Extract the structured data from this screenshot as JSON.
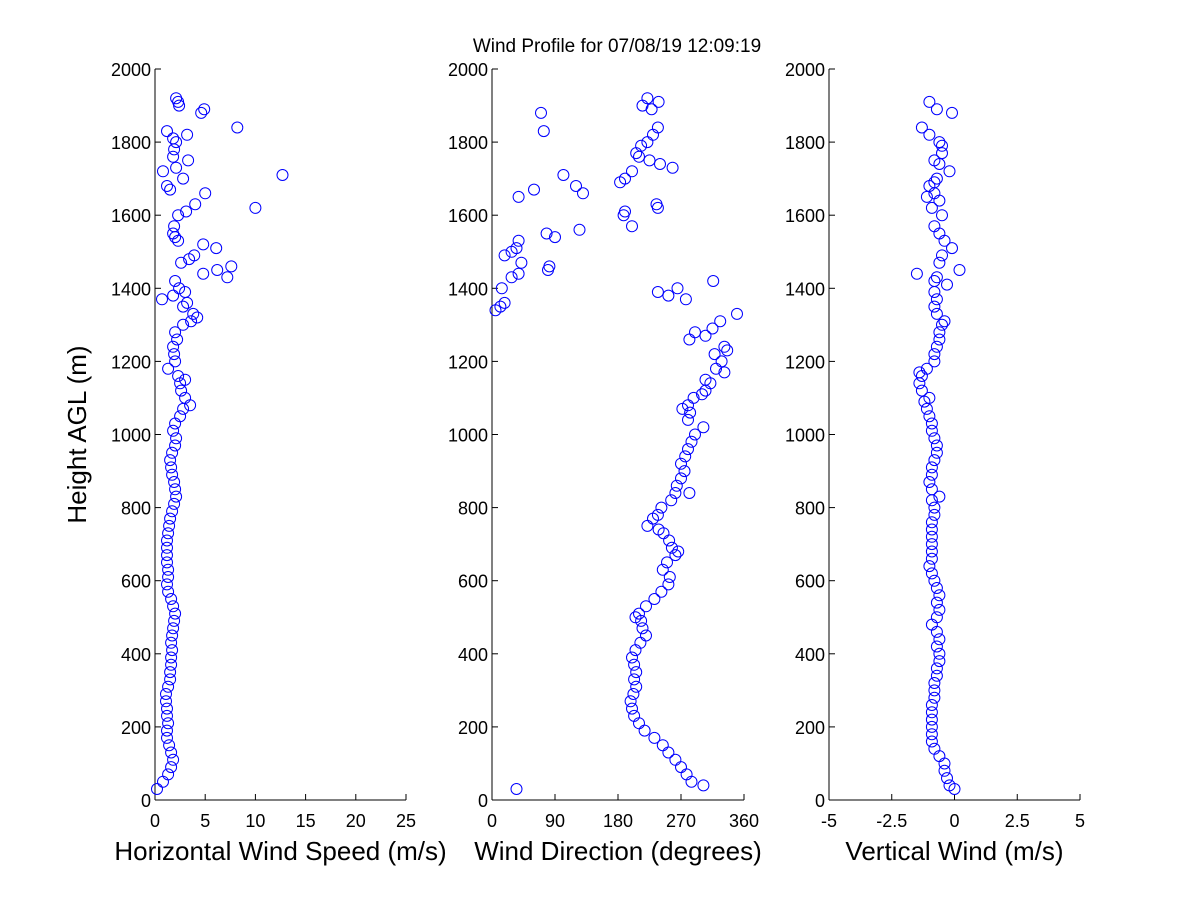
{
  "figure": {
    "title": "Wind Profile for  07/08/19 12:09:19",
    "marker_color": "#0000ff"
  },
  "chart_data": [
    {
      "type": "scatter",
      "title": "",
      "xlabel": "Horizontal Wind Speed (m/s)",
      "ylabel": "Height AGL (m)",
      "xlim": [
        0,
        25
      ],
      "ylim": [
        0,
        2000
      ],
      "xticks": [
        0,
        5,
        10,
        15,
        20,
        25
      ],
      "xtick_labels": [
        "0",
        "5",
        "10",
        "15",
        "20",
        "25"
      ],
      "yticks": [
        0,
        200,
        400,
        600,
        800,
        1000,
        1200,
        1400,
        1600,
        1800,
        2000
      ],
      "ytick_labels": [
        "0",
        "200",
        "400",
        "600",
        "800",
        "1000",
        "1200",
        "1400",
        "1600",
        "1800",
        "2000"
      ],
      "grid": false,
      "points": [
        [
          0.2,
          30
        ],
        [
          0.8,
          50
        ],
        [
          1.3,
          70
        ],
        [
          1.6,
          90
        ],
        [
          1.8,
          110
        ],
        [
          1.6,
          130
        ],
        [
          1.4,
          150
        ],
        [
          1.2,
          170
        ],
        [
          1.2,
          190
        ],
        [
          1.3,
          210
        ],
        [
          1.2,
          230
        ],
        [
          1.2,
          250
        ],
        [
          1.1,
          270
        ],
        [
          1.1,
          290
        ],
        [
          1.3,
          310
        ],
        [
          1.5,
          330
        ],
        [
          1.5,
          350
        ],
        [
          1.6,
          370
        ],
        [
          1.6,
          390
        ],
        [
          1.7,
          410
        ],
        [
          1.6,
          430
        ],
        [
          1.7,
          450
        ],
        [
          1.8,
          470
        ],
        [
          1.9,
          490
        ],
        [
          2.0,
          510
        ],
        [
          1.8,
          530
        ],
        [
          1.6,
          550
        ],
        [
          1.3,
          570
        ],
        [
          1.2,
          590
        ],
        [
          1.3,
          610
        ],
        [
          1.3,
          630
        ],
        [
          1.2,
          650
        ],
        [
          1.2,
          670
        ],
        [
          1.2,
          690
        ],
        [
          1.2,
          710
        ],
        [
          1.3,
          730
        ],
        [
          1.4,
          750
        ],
        [
          1.5,
          770
        ],
        [
          1.7,
          790
        ],
        [
          1.9,
          810
        ],
        [
          2.1,
          830
        ],
        [
          2.0,
          850
        ],
        [
          1.9,
          870
        ],
        [
          1.7,
          890
        ],
        [
          1.6,
          910
        ],
        [
          1.5,
          930
        ],
        [
          1.7,
          950
        ],
        [
          2.0,
          970
        ],
        [
          2.1,
          990
        ],
        [
          1.8,
          1010
        ],
        [
          2.0,
          1030
        ],
        [
          2.5,
          1050
        ],
        [
          2.8,
          1070
        ],
        [
          3.5,
          1080
        ],
        [
          3.0,
          1100
        ],
        [
          2.6,
          1120
        ],
        [
          2.5,
          1140
        ],
        [
          3.0,
          1150
        ],
        [
          2.3,
          1160
        ],
        [
          1.3,
          1180
        ],
        [
          2.0,
          1200
        ],
        [
          1.9,
          1220
        ],
        [
          1.8,
          1240
        ],
        [
          2.2,
          1260
        ],
        [
          2.0,
          1280
        ],
        [
          2.8,
          1300
        ],
        [
          3.6,
          1310
        ],
        [
          4.2,
          1320
        ],
        [
          3.8,
          1330
        ],
        [
          2.8,
          1350
        ],
        [
          3.2,
          1360
        ],
        [
          0.7,
          1370
        ],
        [
          1.8,
          1380
        ],
        [
          3.0,
          1390
        ],
        [
          2.4,
          1400
        ],
        [
          2.0,
          1420
        ],
        [
          7.2,
          1430
        ],
        [
          4.8,
          1440
        ],
        [
          6.2,
          1450
        ],
        [
          7.6,
          1460
        ],
        [
          2.6,
          1470
        ],
        [
          3.4,
          1480
        ],
        [
          3.9,
          1490
        ],
        [
          6.1,
          1510
        ],
        [
          4.8,
          1520
        ],
        [
          2.3,
          1530
        ],
        [
          2.0,
          1540
        ],
        [
          1.8,
          1550
        ],
        [
          1.9,
          1570
        ],
        [
          2.3,
          1600
        ],
        [
          3.1,
          1610
        ],
        [
          10.0,
          1620
        ],
        [
          4.0,
          1630
        ],
        [
          5.0,
          1660
        ],
        [
          1.5,
          1670
        ],
        [
          1.2,
          1680
        ],
        [
          2.8,
          1700
        ],
        [
          12.7,
          1710
        ],
        [
          0.8,
          1720
        ],
        [
          2.1,
          1730
        ],
        [
          3.3,
          1750
        ],
        [
          1.8,
          1760
        ],
        [
          1.9,
          1780
        ],
        [
          2.1,
          1800
        ],
        [
          1.8,
          1810
        ],
        [
          3.2,
          1820
        ],
        [
          1.2,
          1830
        ],
        [
          8.2,
          1840
        ],
        [
          4.6,
          1880
        ],
        [
          4.9,
          1890
        ],
        [
          2.4,
          1900
        ],
        [
          2.3,
          1910
        ],
        [
          2.1,
          1920
        ]
      ]
    },
    {
      "type": "scatter",
      "title": "",
      "xlabel": "Wind Direction (degrees)",
      "ylabel": "",
      "xlim": [
        0,
        360
      ],
      "ylim": [
        0,
        2000
      ],
      "xticks": [
        0,
        90,
        180,
        270,
        360
      ],
      "xtick_labels": [
        "0",
        "90",
        "180",
        "270",
        "360"
      ],
      "yticks": [
        0,
        200,
        400,
        600,
        800,
        1000,
        1200,
        1400,
        1600,
        1800,
        2000
      ],
      "ytick_labels": [
        "0",
        "200",
        "400",
        "600",
        "800",
        "1000",
        "1200",
        "1400",
        "1600",
        "1800",
        "2000"
      ],
      "grid": false,
      "points": [
        [
          35,
          30
        ],
        [
          302,
          40
        ],
        [
          285,
          50
        ],
        [
          278,
          70
        ],
        [
          270,
          90
        ],
        [
          262,
          110
        ],
        [
          252,
          130
        ],
        [
          244,
          150
        ],
        [
          232,
          170
        ],
        [
          218,
          190
        ],
        [
          210,
          210
        ],
        [
          203,
          230
        ],
        [
          200,
          250
        ],
        [
          198,
          270
        ],
        [
          202,
          290
        ],
        [
          206,
          310
        ],
        [
          203,
          330
        ],
        [
          206,
          350
        ],
        [
          203,
          370
        ],
        [
          200,
          390
        ],
        [
          205,
          410
        ],
        [
          212,
          430
        ],
        [
          220,
          450
        ],
        [
          215,
          470
        ],
        [
          213,
          490
        ],
        [
          205,
          500
        ],
        [
          210,
          510
        ],
        [
          220,
          530
        ],
        [
          232,
          550
        ],
        [
          242,
          570
        ],
        [
          252,
          590
        ],
        [
          254,
          610
        ],
        [
          244,
          630
        ],
        [
          250,
          650
        ],
        [
          262,
          670
        ],
        [
          266,
          680
        ],
        [
          257,
          690
        ],
        [
          253,
          710
        ],
        [
          245,
          730
        ],
        [
          238,
          740
        ],
        [
          222,
          750
        ],
        [
          230,
          770
        ],
        [
          237,
          780
        ],
        [
          242,
          800
        ],
        [
          256,
          820
        ],
        [
          262,
          840
        ],
        [
          282,
          840
        ],
        [
          264,
          860
        ],
        [
          270,
          880
        ],
        [
          275,
          900
        ],
        [
          270,
          920
        ],
        [
          276,
          940
        ],
        [
          280,
          960
        ],
        [
          285,
          980
        ],
        [
          290,
          1000
        ],
        [
          302,
          1020
        ],
        [
          280,
          1040
        ],
        [
          283,
          1060
        ],
        [
          272,
          1070
        ],
        [
          280,
          1080
        ],
        [
          288,
          1100
        ],
        [
          300,
          1110
        ],
        [
          305,
          1120
        ],
        [
          312,
          1140
        ],
        [
          305,
          1150
        ],
        [
          332,
          1170
        ],
        [
          320,
          1180
        ],
        [
          328,
          1200
        ],
        [
          318,
          1220
        ],
        [
          336,
          1230
        ],
        [
          332,
          1240
        ],
        [
          282,
          1260
        ],
        [
          305,
          1270
        ],
        [
          290,
          1280
        ],
        [
          315,
          1290
        ],
        [
          326,
          1310
        ],
        [
          350,
          1330
        ],
        [
          5,
          1340
        ],
        [
          12,
          1350
        ],
        [
          18,
          1360
        ],
        [
          277,
          1370
        ],
        [
          252,
          1380
        ],
        [
          237,
          1390
        ],
        [
          14,
          1400
        ],
        [
          265,
          1400
        ],
        [
          316,
          1420
        ],
        [
          28,
          1430
        ],
        [
          38,
          1440
        ],
        [
          80,
          1450
        ],
        [
          82,
          1460
        ],
        [
          42,
          1470
        ],
        [
          18,
          1490
        ],
        [
          28,
          1500
        ],
        [
          35,
          1510
        ],
        [
          38,
          1530
        ],
        [
          90,
          1540
        ],
        [
          78,
          1550
        ],
        [
          125,
          1560
        ],
        [
          200,
          1570
        ],
        [
          188,
          1600
        ],
        [
          190,
          1610
        ],
        [
          237,
          1620
        ],
        [
          235,
          1630
        ],
        [
          38,
          1650
        ],
        [
          130,
          1660
        ],
        [
          60,
          1670
        ],
        [
          120,
          1680
        ],
        [
          183,
          1690
        ],
        [
          190,
          1700
        ],
        [
          102,
          1710
        ],
        [
          200,
          1720
        ],
        [
          258,
          1730
        ],
        [
          240,
          1740
        ],
        [
          225,
          1750
        ],
        [
          210,
          1760
        ],
        [
          206,
          1770
        ],
        [
          213,
          1790
        ],
        [
          222,
          1800
        ],
        [
          230,
          1820
        ],
        [
          74,
          1830
        ],
        [
          237,
          1840
        ],
        [
          70,
          1880
        ],
        [
          228,
          1890
        ],
        [
          215,
          1900
        ],
        [
          238,
          1910
        ],
        [
          222,
          1920
        ]
      ]
    },
    {
      "type": "scatter",
      "title": "",
      "xlabel": "Vertical Wind (m/s)",
      "ylabel": "",
      "xlim": [
        -5,
        5
      ],
      "ylim": [
        0,
        2000
      ],
      "xticks": [
        -5,
        -2.5,
        0,
        2.5,
        5
      ],
      "xtick_labels": [
        "-5",
        "-2.5",
        "0",
        "2.5",
        "5"
      ],
      "yticks": [
        0,
        200,
        400,
        600,
        800,
        1000,
        1200,
        1400,
        1600,
        1800,
        2000
      ],
      "ytick_labels": [
        "0",
        "200",
        "400",
        "600",
        "800",
        "1000",
        "1200",
        "1400",
        "1600",
        "1800",
        "2000"
      ],
      "grid": false,
      "points": [
        [
          0.0,
          30
        ],
        [
          -0.2,
          40
        ],
        [
          -0.3,
          60
        ],
        [
          -0.4,
          80
        ],
        [
          -0.4,
          100
        ],
        [
          -0.6,
          120
        ],
        [
          -0.8,
          140
        ],
        [
          -0.9,
          160
        ],
        [
          -0.9,
          180
        ],
        [
          -0.9,
          200
        ],
        [
          -0.9,
          220
        ],
        [
          -0.9,
          240
        ],
        [
          -0.9,
          260
        ],
        [
          -0.8,
          280
        ],
        [
          -0.8,
          300
        ],
        [
          -0.8,
          320
        ],
        [
          -0.7,
          340
        ],
        [
          -0.7,
          360
        ],
        [
          -0.6,
          380
        ],
        [
          -0.6,
          400
        ],
        [
          -0.7,
          420
        ],
        [
          -0.6,
          440
        ],
        [
          -0.7,
          460
        ],
        [
          -0.9,
          480
        ],
        [
          -0.7,
          500
        ],
        [
          -0.6,
          520
        ],
        [
          -0.7,
          540
        ],
        [
          -0.6,
          560
        ],
        [
          -0.7,
          580
        ],
        [
          -0.8,
          600
        ],
        [
          -0.9,
          620
        ],
        [
          -1.0,
          640
        ],
        [
          -0.9,
          660
        ],
        [
          -0.9,
          680
        ],
        [
          -0.9,
          700
        ],
        [
          -0.9,
          720
        ],
        [
          -0.9,
          740
        ],
        [
          -0.9,
          760
        ],
        [
          -0.8,
          780
        ],
        [
          -0.8,
          800
        ],
        [
          -0.9,
          820
        ],
        [
          -0.6,
          830
        ],
        [
          -0.9,
          850
        ],
        [
          -1.0,
          870
        ],
        [
          -0.9,
          890
        ],
        [
          -0.9,
          910
        ],
        [
          -0.8,
          930
        ],
        [
          -0.7,
          950
        ],
        [
          -0.7,
          970
        ],
        [
          -0.8,
          990
        ],
        [
          -0.9,
          1010
        ],
        [
          -0.9,
          1030
        ],
        [
          -1.0,
          1050
        ],
        [
          -1.1,
          1070
        ],
        [
          -1.2,
          1090
        ],
        [
          -1.0,
          1100
        ],
        [
          -1.3,
          1120
        ],
        [
          -1.4,
          1140
        ],
        [
          -1.3,
          1160
        ],
        [
          -1.4,
          1170
        ],
        [
          -1.1,
          1180
        ],
        [
          -0.8,
          1200
        ],
        [
          -0.8,
          1220
        ],
        [
          -0.7,
          1240
        ],
        [
          -0.6,
          1260
        ],
        [
          -0.6,
          1280
        ],
        [
          -0.5,
          1300
        ],
        [
          -0.4,
          1310
        ],
        [
          -0.7,
          1330
        ],
        [
          -0.8,
          1350
        ],
        [
          -0.7,
          1370
        ],
        [
          -0.8,
          1390
        ],
        [
          -0.3,
          1410
        ],
        [
          -0.8,
          1420
        ],
        [
          -0.7,
          1430
        ],
        [
          -1.5,
          1440
        ],
        [
          0.2,
          1450
        ],
        [
          -0.6,
          1470
        ],
        [
          -0.5,
          1490
        ],
        [
          -0.1,
          1510
        ],
        [
          -0.4,
          1530
        ],
        [
          -0.6,
          1550
        ],
        [
          -0.8,
          1570
        ],
        [
          -0.5,
          1600
        ],
        [
          -0.9,
          1620
        ],
        [
          -0.6,
          1640
        ],
        [
          -1.1,
          1650
        ],
        [
          -0.8,
          1660
        ],
        [
          -1.0,
          1680
        ],
        [
          -0.8,
          1690
        ],
        [
          -0.7,
          1700
        ],
        [
          -0.2,
          1720
        ],
        [
          -0.6,
          1740
        ],
        [
          -0.8,
          1750
        ],
        [
          -0.5,
          1770
        ],
        [
          -0.5,
          1790
        ],
        [
          -0.6,
          1800
        ],
        [
          -1.0,
          1820
        ],
        [
          -1.3,
          1840
        ],
        [
          -0.1,
          1880
        ],
        [
          -0.7,
          1890
        ],
        [
          -1.0,
          1910
        ]
      ]
    }
  ]
}
